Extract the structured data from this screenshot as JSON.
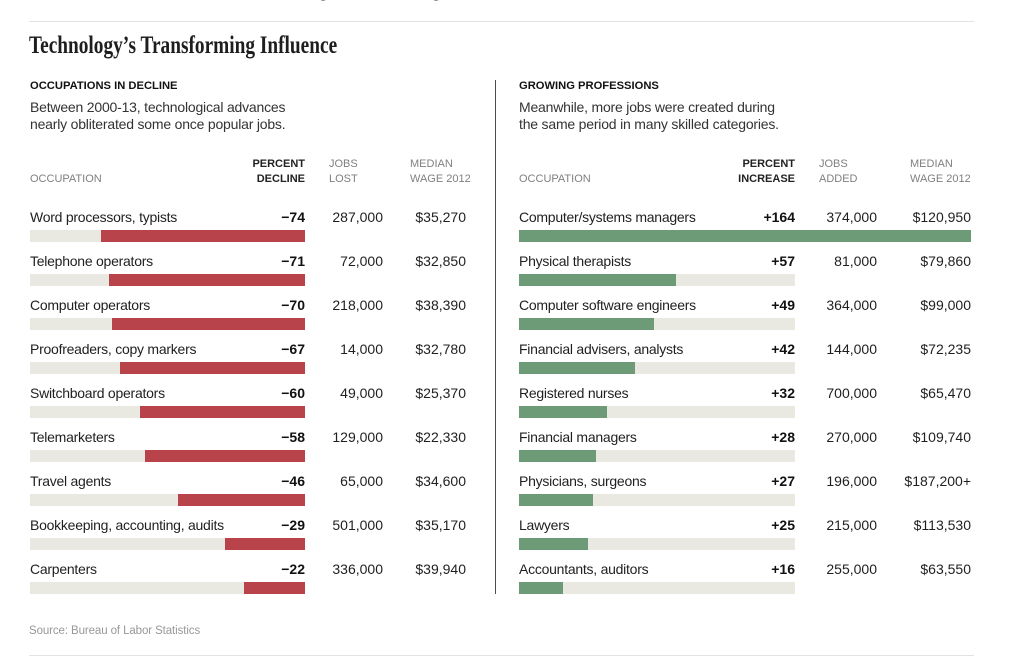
{
  "page_title": "Technology’s Transforming Influence",
  "cropped_headline_fragments": [
    "y",
    "y"
  ],
  "source_note": "Source: Bureau of Labor Statistics",
  "colors": {
    "decline_bar": "#b8434b",
    "growth_bar": "#6d9b78",
    "bar_track": "#eae9e1",
    "rule": "#e2e2e2",
    "divider": "#4d4d4d",
    "header_gray": "#7f7f7f",
    "source_gray": "#989898",
    "text_dark": "#1f1f1f"
  },
  "panels": [
    {
      "kicker": "OCCUPATIONS IN DECLINE",
      "subtitle": "Between 2000-13, technological advances\nnearly obliterated some once popular jobs.",
      "col_occupation": "OCCUPATION",
      "col_percent": "PERCENT\nDECLINE",
      "col_jobs": "JOBS\nLOST",
      "col_wage": "MEDIAN\nWAGE 2012",
      "bar_color": "#b8434b",
      "direction": "decline",
      "rows": [
        {
          "occupation": "Word processors, typists",
          "percent": "−74",
          "percent_value": 74,
          "jobs": "287,000",
          "wage": "$35,270"
        },
        {
          "occupation": "Telephone operators",
          "percent": "−71",
          "percent_value": 71,
          "jobs": "72,000",
          "wage": "$32,850"
        },
        {
          "occupation": "Computer operators",
          "percent": "−70",
          "percent_value": 70,
          "jobs": "218,000",
          "wage": "$38,390"
        },
        {
          "occupation": "Proofreaders, copy markers",
          "percent": "−67",
          "percent_value": 67,
          "jobs": "14,000",
          "wage": "$32,780"
        },
        {
          "occupation": "Switchboard operators",
          "percent": "−60",
          "percent_value": 60,
          "jobs": "49,000",
          "wage": "$25,370"
        },
        {
          "occupation": "Telemarketers",
          "percent": "−58",
          "percent_value": 58,
          "jobs": "129,000",
          "wage": "$22,330"
        },
        {
          "occupation": "Travel agents",
          "percent": "−46",
          "percent_value": 46,
          "jobs": "65,000",
          "wage": "$34,600"
        },
        {
          "occupation": "Bookkeeping, accounting, audits",
          "percent": "−29",
          "percent_value": 29,
          "jobs": "501,000",
          "wage": "$35,170"
        },
        {
          "occupation": "Carpenters",
          "percent": "−22",
          "percent_value": 22,
          "jobs": "336,000",
          "wage": "$39,940"
        }
      ]
    },
    {
      "kicker": "GROWING PROFESSIONS",
      "subtitle": "Meanwhile, more jobs were created during\nthe same period in many skilled categories.",
      "col_occupation": "OCCUPATION",
      "col_percent": "PERCENT\nINCREASE",
      "col_jobs": "JOBS\nADDED",
      "col_wage": "MEDIAN\nWAGE 2012",
      "bar_color": "#6d9b78",
      "direction": "growth",
      "rows": [
        {
          "occupation": "Computer/systems managers",
          "percent": "+164",
          "percent_value": 164,
          "jobs": "374,000",
          "wage": "$120,950"
        },
        {
          "occupation": "Physical therapists",
          "percent": "+57",
          "percent_value": 57,
          "jobs": "81,000",
          "wage": "$79,860"
        },
        {
          "occupation": "Computer software engineers",
          "percent": "+49",
          "percent_value": 49,
          "jobs": "364,000",
          "wage": "$99,000"
        },
        {
          "occupation": "Financial advisers, analysts",
          "percent": "+42",
          "percent_value": 42,
          "jobs": "144,000",
          "wage": "$72,235"
        },
        {
          "occupation": "Registered nurses",
          "percent": "+32",
          "percent_value": 32,
          "jobs": "700,000",
          "wage": "$65,470"
        },
        {
          "occupation": "Financial managers",
          "percent": "+28",
          "percent_value": 28,
          "jobs": "270,000",
          "wage": "$109,740"
        },
        {
          "occupation": "Physicians, surgeons",
          "percent": "+27",
          "percent_value": 27,
          "jobs": "196,000",
          "wage": "$187,200+"
        },
        {
          "occupation": "Lawyers",
          "percent": "+25",
          "percent_value": 25,
          "jobs": "215,000",
          "wage": "$113,530"
        },
        {
          "occupation": "Accountants, auditors",
          "percent": "+16",
          "percent_value": 16,
          "jobs": "255,000",
          "wage": "$63,550"
        }
      ]
    }
  ],
  "chart_data": [
    {
      "type": "bar",
      "title": "OCCUPATIONS IN DECLINE",
      "subtitle": "Between 2000-13, technological advances nearly obliterated some once popular jobs.",
      "orientation": "horizontal",
      "xlabel": "PERCENT DECLINE",
      "ylabel": "OCCUPATION",
      "xlim": [
        -100,
        0
      ],
      "categories": [
        "Word processors, typists",
        "Telephone operators",
        "Computer operators",
        "Proofreaders, copy markers",
        "Switchboard operators",
        "Telemarketers",
        "Travel agents",
        "Bookkeeping, accounting, audits",
        "Carpenters"
      ],
      "series": [
        {
          "name": "Percent decline",
          "values": [
            -74,
            -71,
            -70,
            -67,
            -60,
            -58,
            -46,
            -29,
            -22
          ]
        },
        {
          "name": "Jobs lost",
          "values": [
            287000,
            72000,
            218000,
            14000,
            49000,
            129000,
            65000,
            501000,
            336000
          ]
        },
        {
          "name": "Median wage 2012",
          "values": [
            35270,
            32850,
            38390,
            32780,
            25370,
            22330,
            34600,
            35170,
            39940
          ]
        }
      ],
      "bar_color": "#b8434b",
      "grid": false,
      "legend": false
    },
    {
      "type": "bar",
      "title": "GROWING PROFESSIONS",
      "subtitle": "Meanwhile, more jobs were created during the same period in many skilled categories.",
      "orientation": "horizontal",
      "xlabel": "PERCENT INCREASE",
      "ylabel": "OCCUPATION",
      "xlim": [
        0,
        164
      ],
      "categories": [
        "Computer/systems managers",
        "Physical therapists",
        "Computer software engineers",
        "Financial advisers, analysts",
        "Registered nurses",
        "Financial managers",
        "Physicians, surgeons",
        "Lawyers",
        "Accountants, auditors"
      ],
      "series": [
        {
          "name": "Percent increase",
          "values": [
            164,
            57,
            49,
            42,
            32,
            28,
            27,
            25,
            16
          ]
        },
        {
          "name": "Jobs added",
          "values": [
            374000,
            81000,
            364000,
            144000,
            700000,
            270000,
            196000,
            215000,
            255000
          ]
        },
        {
          "name": "Median wage 2012",
          "values": [
            120950,
            79860,
            99000,
            72235,
            65470,
            109740,
            187200,
            113530,
            63550
          ]
        }
      ],
      "bar_color": "#6d9b78",
      "grid": false,
      "legend": false
    }
  ]
}
